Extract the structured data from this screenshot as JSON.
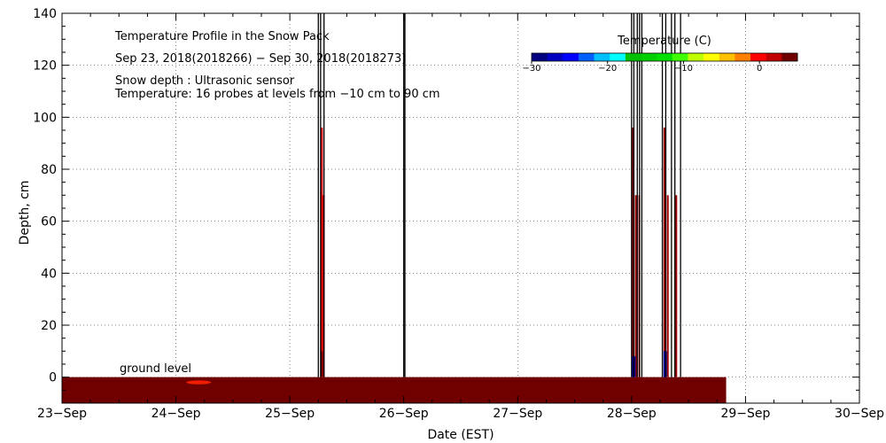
{
  "chart_data": {
    "type": "heatmap",
    "title": "Temperature Profile in the Snow Pack",
    "subtitle": "Sep 23, 2018(2018266) − Sep 30, 2018(2018273)",
    "notes": [
      "Snow depth : Ultrasonic sensor",
      "Temperature: 16 probes at levels from −10 cm to 90 cm"
    ],
    "annotation": "ground level",
    "xlabel": "Date (EST)",
    "ylabel": "Depth, cm",
    "x_ticks": [
      "23−Sep",
      "24−Sep",
      "25−Sep",
      "26−Sep",
      "27−Sep",
      "28−Sep",
      "29−Sep",
      "30−Sep"
    ],
    "xlim_days": [
      0,
      7
    ],
    "ylim": [
      -10,
      140
    ],
    "y_ticks": [
      0,
      20,
      40,
      60,
      80,
      100,
      120,
      140
    ],
    "grid": true,
    "colorbar": {
      "title": "Temperature (C)",
      "range": [
        -30,
        5
      ],
      "ticks": [
        -30,
        -20,
        -10,
        0
      ],
      "tick_labels": [
        "−30",
        "−20",
        "−10",
        "0"
      ],
      "colors": [
        "#000080",
        "#0000c0",
        "#0000ff",
        "#0060ff",
        "#00c0ff",
        "#00ffff",
        "#00c000",
        "#00d000",
        "#00e000",
        "#40ff00",
        "#c0ff00",
        "#ffff00",
        "#ffc000",
        "#ff8000",
        "#ff0000",
        "#c00000",
        "#700000"
      ]
    },
    "ground_layer": {
      "y_range": [
        -10,
        0
      ],
      "x_range_days": [
        0,
        5.83
      ],
      "color": "#700000",
      "warm_spot_day": 1.2,
      "warm_spot_color": "#ff2000"
    },
    "bars": [
      {
        "x": 2.27,
        "w": 0.02,
        "y_top": 96,
        "color": "#e00000"
      },
      {
        "x": 2.29,
        "w": 0.01,
        "y_top": 70,
        "color": "#c00000"
      },
      {
        "x": 2.27,
        "w": 0.02,
        "y_top": 10,
        "color": "#700000"
      },
      {
        "x": 5.0,
        "w": 0.025,
        "y_top": 96,
        "color": "#8b0000"
      },
      {
        "x": 5.03,
        "w": 0.02,
        "y_top": 70,
        "color": "#a00000"
      },
      {
        "x": 5.06,
        "w": 0.01,
        "y_top": 70,
        "color": "#a00000"
      },
      {
        "x": 5.0,
        "w": 0.035,
        "y_top": 8,
        "color": "#0000a0"
      },
      {
        "x": 5.28,
        "w": 0.025,
        "y_top": 96,
        "color": "#a00000"
      },
      {
        "x": 5.31,
        "w": 0.01,
        "y_top": 70,
        "color": "#a00000"
      },
      {
        "x": 5.28,
        "w": 0.03,
        "y_top": 10,
        "color": "#0000a0"
      },
      {
        "x": 5.38,
        "w": 0.02,
        "y_top": 70,
        "color": "#a00000"
      }
    ],
    "vlines_days": [
      2.25,
      2.27,
      2.3,
      3.0,
      3.01,
      5.0,
      5.02,
      5.05,
      5.07,
      5.09,
      5.27,
      5.3,
      5.35,
      5.38,
      5.43
    ]
  }
}
